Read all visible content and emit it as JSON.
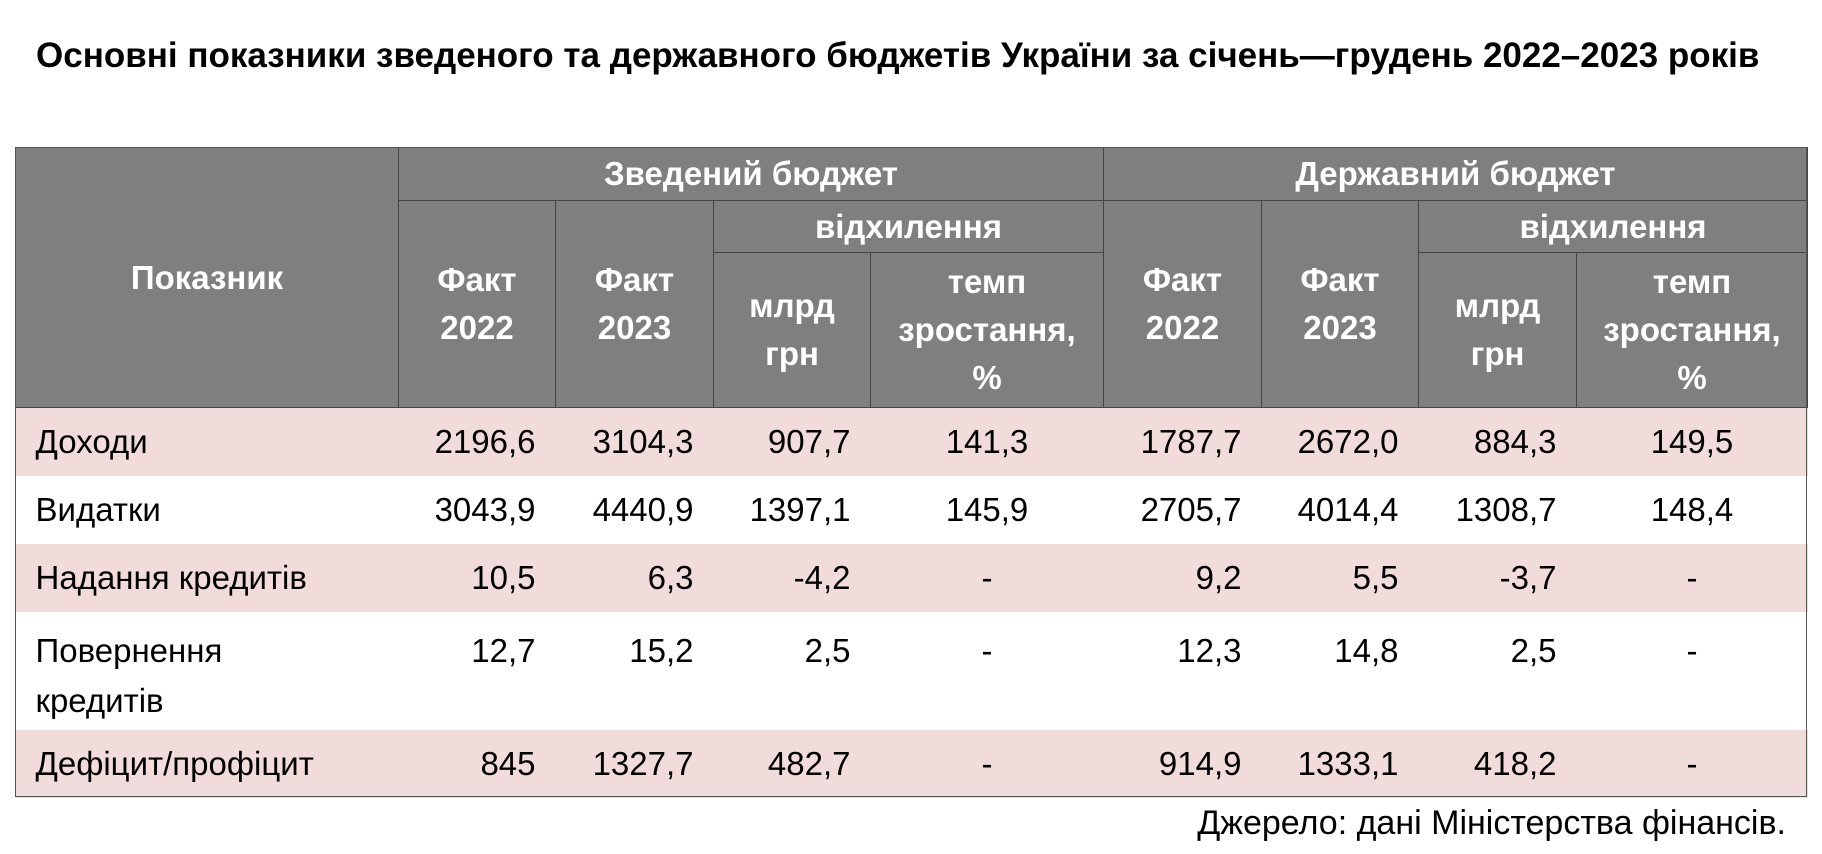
{
  "title": "Основні показники зведеного та державного бюджетів України за січень—грудень 2022–2023 років",
  "header": {
    "indicator": "Показник",
    "consolidated": "Зведений бюджет",
    "state": "Державний бюджет",
    "fact2022_line1": "Факт",
    "fact2022_line2": "2022",
    "fact2023_line1": "Факт",
    "fact2023_line2": "2023",
    "deviation": "відхилення",
    "bn_uah_line1": "млрд",
    "bn_uah_line2": "грн",
    "growth_line1": "темп",
    "growth_line2": "зростання,",
    "growth_line3": "%"
  },
  "rows": [
    {
      "label": "Доходи",
      "c_2022": "2196,6",
      "c_2023": "3104,3",
      "c_dev": "907,7",
      "c_rate": "141,3",
      "s_2022": "1787,7",
      "s_2023": "2672,0",
      "s_dev": "884,3",
      "s_rate": "149,5"
    },
    {
      "label": "Видатки",
      "c_2022": "3043,9",
      "c_2023": "4440,9",
      "c_dev": "1397,1",
      "c_rate": "145,9",
      "s_2022": "2705,7",
      "s_2023": "4014,4",
      "s_dev": "1308,7",
      "s_rate": "148,4"
    },
    {
      "label": "Надання кредитів",
      "c_2022": "10,5",
      "c_2023": "6,3",
      "c_dev": "-4,2",
      "c_rate": "-",
      "s_2022": "9,2",
      "s_2023": "5,5",
      "s_dev": "-3,7",
      "s_rate": "-"
    },
    {
      "label_line1": "Повернення",
      "label_line2": "кредитів",
      "c_2022": "12,7",
      "c_2023": "15,2",
      "c_dev": "2,5",
      "c_rate": "-",
      "s_2022": "12,3",
      "s_2023": "14,8",
      "s_dev": "2,5",
      "s_rate": "-"
    },
    {
      "label": "Дефіцит/профіцит",
      "c_2022": "845",
      "c_2023": "1327,7",
      "c_dev": "482,7",
      "c_rate": "-",
      "s_2022": "914,9",
      "s_2023": "1333,1",
      "s_dev": "418,2",
      "s_rate": "-"
    }
  ],
  "source": "Джерело: дані Міністерства фінансів."
}
